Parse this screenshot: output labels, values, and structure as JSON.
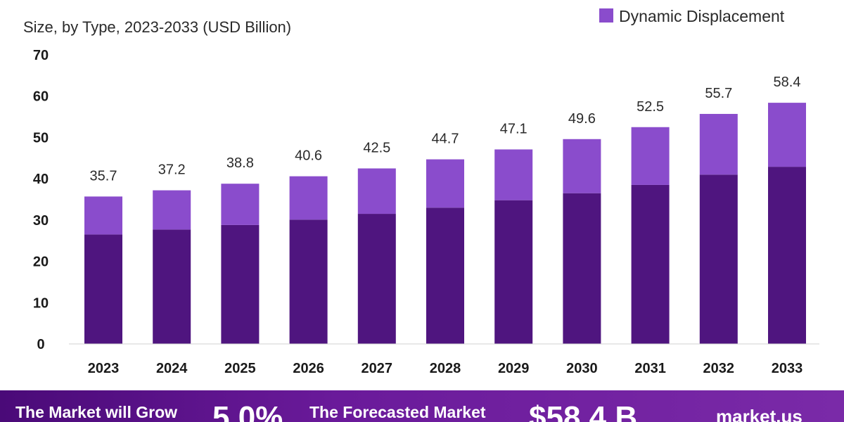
{
  "chart_data": {
    "type": "bar",
    "stacked": true,
    "subtitle": "Size, by Type, 2023-2033 (USD Billion)",
    "categories": [
      "2023",
      "2024",
      "2025",
      "2026",
      "2027",
      "2028",
      "2029",
      "2030",
      "2031",
      "2032",
      "2033"
    ],
    "series": [
      {
        "name": "",
        "color": "#4f157f",
        "values": [
          26.5,
          27.7,
          28.8,
          30.1,
          31.5,
          33.0,
          34.8,
          36.5,
          38.5,
          41.0,
          42.9
        ]
      },
      {
        "name": "Dynamic Displacement",
        "color": "#8a4ccc",
        "values": [
          9.2,
          9.5,
          10.0,
          10.5,
          11.0,
          11.7,
          12.3,
          13.1,
          14.0,
          14.7,
          15.5
        ]
      }
    ],
    "totals": [
      "35.7",
      "37.2",
      "38.8",
      "40.6",
      "42.5",
      "44.7",
      "47.1",
      "49.6",
      "52.5",
      "55.7",
      "58.4"
    ],
    "yticks": [
      0,
      10,
      20,
      30,
      40,
      50,
      60,
      70
    ],
    "ylim": [
      0,
      70
    ],
    "legend": {
      "position": "top-right",
      "entries": [
        "Dynamic Displacement"
      ]
    }
  },
  "footer": {
    "grow_label": "The Market will Grow",
    "cagr": "5.0%",
    "forecast_label": "The Forecasted Market",
    "forecast_value": "$58.4 B",
    "site": "market.us"
  }
}
